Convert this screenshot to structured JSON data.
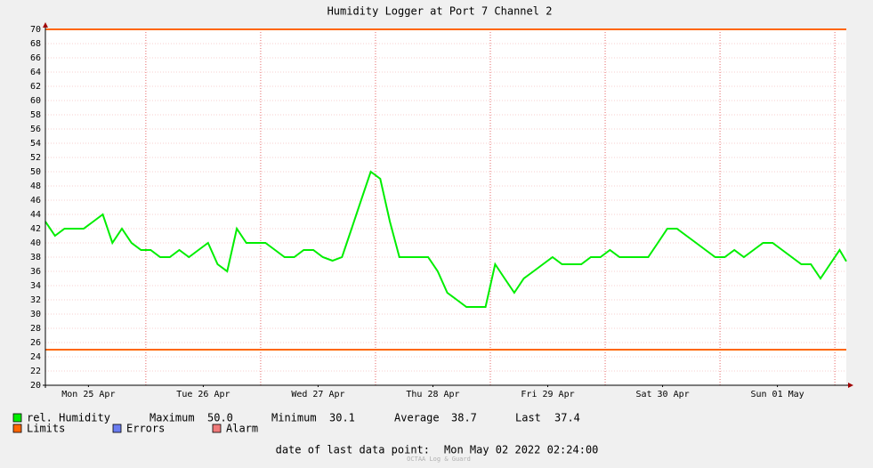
{
  "chart_data": {
    "type": "line",
    "title": "Humidity Logger at Port 7 Channel 2",
    "xlim": [
      3,
      170.4
    ],
    "ylim": [
      20,
      70
    ],
    "yticks": [
      20,
      22,
      24,
      26,
      28,
      30,
      32,
      34,
      36,
      38,
      40,
      42,
      44,
      46,
      48,
      50,
      52,
      54,
      56,
      58,
      60,
      62,
      64,
      66,
      68,
      70
    ],
    "xticks": [
      {
        "value": 12,
        "label": "Mon 25 Apr"
      },
      {
        "value": 36,
        "label": "Tue 26 Apr"
      },
      {
        "value": 60,
        "label": "Wed 27 Apr"
      },
      {
        "value": 84,
        "label": "Thu 28 Apr"
      },
      {
        "value": 108,
        "label": "Fri 29 Apr"
      },
      {
        "value": 132,
        "label": "Sat 30 Apr"
      },
      {
        "value": 156,
        "label": "Sun 01 May"
      }
    ],
    "xgrid": [
      24,
      48,
      72,
      96,
      120,
      144,
      168
    ],
    "grid": true,
    "x": [
      3,
      5,
      7,
      9,
      11,
      13,
      15,
      17,
      19,
      21,
      23,
      25,
      27,
      29,
      31,
      33,
      35,
      37,
      39,
      41,
      43,
      45,
      47,
      49,
      51,
      53,
      55,
      57,
      59,
      61,
      63,
      65,
      67,
      69,
      71,
      73,
      75,
      77,
      79,
      81,
      83,
      85,
      87,
      89,
      91,
      93,
      95,
      97,
      99,
      101,
      103,
      105,
      107,
      109,
      111,
      113,
      115,
      117,
      119,
      121,
      123,
      125,
      127,
      129,
      131,
      133,
      135,
      137,
      139,
      141,
      143,
      145,
      147,
      149,
      151,
      153,
      155,
      157,
      159,
      161,
      163,
      165,
      167,
      169,
      170.4
    ],
    "series": [
      {
        "name": "rel. Humidity",
        "color": "#00ee00",
        "values": [
          43,
          41,
          42,
          42,
          42,
          43,
          44,
          40,
          42,
          40,
          39,
          39,
          38,
          38,
          39,
          38,
          39,
          40,
          37,
          36,
          42,
          40,
          40,
          40,
          39,
          38,
          38,
          39,
          39,
          38,
          37.5,
          38,
          42,
          46,
          50,
          49,
          43,
          38,
          38,
          38,
          38,
          36,
          33,
          32,
          31,
          31,
          31,
          37,
          35,
          33,
          35,
          36,
          37,
          38,
          37,
          37,
          37,
          38,
          38,
          39,
          38,
          38,
          38,
          38,
          40,
          42,
          42,
          41,
          40,
          39,
          38,
          38,
          39,
          38,
          39,
          40,
          40,
          39,
          38,
          37,
          37,
          35,
          37,
          39,
          37.4
        ]
      }
    ],
    "limits": {
      "name": "Limits",
      "color": "#ff6600",
      "values": [
        70,
        25
      ]
    },
    "legend_extra": [
      {
        "name": "Errors",
        "color": "#6a7cf0"
      },
      {
        "name": "Alarm",
        "color": "#f07a7a"
      }
    ],
    "stats": [
      {
        "label": "Maximum",
        "value": "50.0"
      },
      {
        "label": "Minimum",
        "value": "30.1"
      },
      {
        "label": "Average",
        "value": "38.7"
      },
      {
        "label": "Last",
        "value": "37.4"
      }
    ],
    "footer_label": "date of last data point:",
    "footer_date": "Mon May 02 2022 02:24:00",
    "watermark": "OCTAA Log & Guard"
  }
}
